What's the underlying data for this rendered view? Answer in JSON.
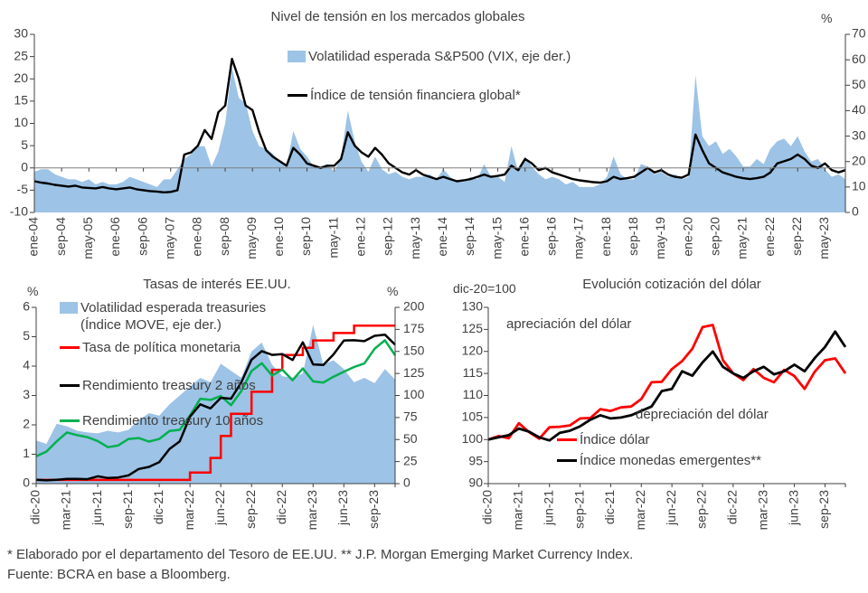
{
  "colors": {
    "area_blue": "#9DC3E6",
    "line_red": "#FF0000",
    "line_green": "#00B050",
    "line_black": "#000000",
    "axis": "#404040",
    "zero_line": "#7f7f7f"
  },
  "footer": {
    "line1": "* Elaborado por el departamento del Tesoro de EE.UU. ** J.P. Morgan Emerging Market Currency Index.",
    "line2": "Fuente: BCRA en base a Bloomberg."
  },
  "chart_data": [
    {
      "type": "area+line",
      "title": "Nivel de tensión en los mercados globales",
      "right_axis_unit": "%",
      "sample_step_months": 2,
      "x_tick_step": 8,
      "x_tick_labels": [
        "ene-04",
        "sep-04",
        "may-05",
        "ene-06",
        "sep-06",
        "may-07",
        "ene-08",
        "sep-08",
        "may-09",
        "ene-10",
        "sep-10",
        "may-11",
        "ene-12",
        "sep-12",
        "may-13",
        "ene-14",
        "sep-14",
        "may-15",
        "ene-16",
        "sep-16",
        "may-17",
        "ene-18",
        "sep-18",
        "may-19",
        "ene-20",
        "sep-20",
        "may-21",
        "ene-22",
        "sep-22",
        "may-23"
      ],
      "left_axis": {
        "min": -10,
        "max": 30,
        "tick_interval": 5
      },
      "right_axis": {
        "min": 0,
        "max": 70,
        "tick_interval": 10
      },
      "legend": [
        {
          "label": "Volatilidad esperada S&P500 (VIX, eje der.)",
          "swatch": "area",
          "color": "#9DC3E6"
        },
        {
          "label": "Índice de tensión financiera global*",
          "swatch": "line",
          "color": "#000000"
        }
      ],
      "series": [
        {
          "name": "Volatilidad esperada S&P500 (VIX)",
          "axis": "right",
          "kind": "area",
          "color": "#9DC3E6",
          "values": [
            16,
            17,
            17,
            15,
            14,
            13,
            13,
            12,
            13,
            11,
            12,
            11,
            11,
            12,
            14,
            13,
            12,
            11,
            10,
            13,
            13,
            17,
            21,
            23,
            26,
            26,
            18,
            24,
            35,
            57,
            45,
            43,
            32,
            26,
            25,
            23,
            20,
            18,
            32,
            25,
            22,
            18,
            18,
            19,
            16,
            22,
            40,
            28,
            20,
            16,
            22,
            17,
            15,
            16,
            14,
            13,
            14,
            14,
            15,
            13,
            17,
            14,
            12,
            12,
            14,
            13,
            19,
            14,
            14,
            12,
            26,
            16,
            22,
            18,
            15,
            13,
            14,
            13,
            11,
            12,
            10,
            10,
            10,
            11,
            14,
            22,
            15,
            13,
            13,
            19,
            18,
            15,
            16,
            14,
            15,
            13,
            14,
            54,
            30,
            26,
            28,
            23,
            25,
            22,
            18,
            18,
            21,
            19,
            25,
            28,
            29,
            26,
            30,
            24,
            20,
            21,
            17,
            14,
            15,
            13
          ]
        },
        {
          "name": "Índice de tensión financiera global",
          "axis": "left",
          "kind": "line",
          "color": "#000000",
          "width": 2.4,
          "values": [
            -3.0,
            -3.3,
            -3.5,
            -3.8,
            -4.0,
            -4.2,
            -4.0,
            -4.4,
            -4.5,
            -4.6,
            -4.3,
            -4.6,
            -4.8,
            -4.6,
            -4.4,
            -4.8,
            -5.0,
            -5.2,
            -5.3,
            -5.5,
            -5.4,
            -5.0,
            3.0,
            3.5,
            5.0,
            8.5,
            6.5,
            12.5,
            14.0,
            24.5,
            20.0,
            14.0,
            13.0,
            8.0,
            4.0,
            2.5,
            1.5,
            0.5,
            4.5,
            3.0,
            1.0,
            0.5,
            0.0,
            0.5,
            0.5,
            2.0,
            8.0,
            5.0,
            3.5,
            2.5,
            4.5,
            3.0,
            1.0,
            0.0,
            -1.0,
            -1.5,
            -0.5,
            -1.5,
            -2.0,
            -2.5,
            -2.0,
            -2.5,
            -3.0,
            -2.8,
            -2.5,
            -2.0,
            -1.5,
            -2.0,
            -1.8,
            -1.5,
            0.5,
            -0.5,
            2.0,
            1.0,
            -0.5,
            0.0,
            -1.0,
            -1.5,
            -2.0,
            -2.5,
            -2.8,
            -3.0,
            -3.2,
            -3.3,
            -3.0,
            -2.0,
            -2.5,
            -2.3,
            -2.0,
            -1.0,
            0.0,
            -1.0,
            -0.5,
            -1.5,
            -2.0,
            -2.2,
            -1.5,
            7.5,
            4.0,
            1.0,
            0.0,
            -1.0,
            -1.5,
            -2.0,
            -2.3,
            -2.5,
            -2.3,
            -2.0,
            -1.0,
            1.0,
            1.5,
            2.0,
            3.0,
            2.0,
            0.5,
            0.0,
            1.0,
            -0.5,
            -1.0,
            -0.5
          ]
        }
      ]
    },
    {
      "type": "area+line",
      "title": "Tasas de interés EE.UU.",
      "left_axis_unit": "%",
      "right_axis_unit": "%",
      "sample_step_months": 1,
      "x_tick_step": 3,
      "x_tick_labels": [
        "dic-20",
        "mar-21",
        "jun-21",
        "sep-21",
        "dic-21",
        "mar-22",
        "jun-22",
        "sep-22",
        "dic-22",
        "mar-23",
        "jun-23",
        "sep-23"
      ],
      "left_axis": {
        "min": 0,
        "max": 6,
        "tick_interval": 1
      },
      "right_axis": {
        "min": 0,
        "max": 200,
        "tick_interval": 25
      },
      "legend": [
        {
          "lines": [
            "Volatilidad esperada treasuries",
            "(Índice MOVE, eje der.)"
          ],
          "swatch": "area",
          "color": "#9DC3E6"
        },
        {
          "label": "Tasa de política monetaria",
          "swatch": "line",
          "color": "#FF0000"
        },
        {
          "label": "Rendimiento treasury 2 años",
          "swatch": "line",
          "color": "#000000"
        },
        {
          "label": "Rendimiento treasury 10 años",
          "swatch": "line",
          "color": "#00B050"
        }
      ],
      "series": [
        {
          "name": "Volatilidad esperada treasuries (Índice MOVE)",
          "axis": "right",
          "kind": "area",
          "color": "#9DC3E6",
          "values": [
            49,
            45,
            68,
            65,
            60,
            58,
            57,
            60,
            58,
            61,
            72,
            80,
            77,
            90,
            100,
            110,
            120,
            115,
            136,
            128,
            120,
            150,
            160,
            135,
            122,
            120,
            125,
            180,
            135,
            140,
            130,
            115,
            120,
            114,
            130,
            118
          ]
        },
        {
          "name": "Tasa de política monetaria",
          "axis": "left",
          "kind": "step",
          "color": "#FF0000",
          "width": 2.5,
          "values": [
            0.125,
            0.125,
            0.125,
            0.125,
            0.125,
            0.125,
            0.125,
            0.125,
            0.125,
            0.125,
            0.125,
            0.125,
            0.125,
            0.125,
            0.125,
            0.375,
            0.375,
            0.875,
            1.625,
            2.375,
            2.375,
            3.125,
            3.125,
            3.875,
            4.375,
            4.375,
            4.625,
            4.875,
            4.875,
            5.125,
            5.125,
            5.375,
            5.375,
            5.375,
            5.375,
            5.375
          ]
        },
        {
          "name": "Rendimiento treasury 10 años",
          "axis": "left",
          "kind": "line",
          "color": "#00B050",
          "width": 2.5,
          "values": [
            0.93,
            1.09,
            1.44,
            1.74,
            1.65,
            1.58,
            1.45,
            1.24,
            1.3,
            1.52,
            1.55,
            1.43,
            1.52,
            1.79,
            1.83,
            2.32,
            2.89,
            2.85,
            2.98,
            2.67,
            3.15,
            3.83,
            4.1,
            3.68,
            3.88,
            3.52,
            3.92,
            3.48,
            3.44,
            3.64,
            3.81,
            3.97,
            4.09,
            4.59,
            4.88,
            4.37
          ]
        },
        {
          "name": "Rendimiento treasury 2 años",
          "axis": "left",
          "kind": "line",
          "color": "#000000",
          "width": 2.5,
          "values": [
            0.13,
            0.11,
            0.13,
            0.16,
            0.16,
            0.15,
            0.25,
            0.19,
            0.21,
            0.28,
            0.5,
            0.57,
            0.73,
            1.18,
            1.44,
            2.28,
            2.7,
            2.56,
            2.92,
            2.89,
            3.45,
            4.22,
            4.51,
            4.38,
            4.41,
            4.21,
            4.81,
            4.06,
            4.04,
            4.4,
            4.87,
            4.88,
            4.85,
            5.03,
            5.07,
            4.73
          ]
        }
      ]
    },
    {
      "type": "line",
      "title": "Evolución cotización del dólar",
      "left_axis_unit": "dic-20=100",
      "sample_step_months": 1,
      "x_tick_step": 3,
      "x_tick_labels": [
        "dic-20",
        "mar-21",
        "jun-21",
        "sep-21",
        "dic-21",
        "mar-22",
        "jun-22",
        "sep-22",
        "dic-22",
        "mar-23",
        "jun-23",
        "sep-23"
      ],
      "left_axis": {
        "min": 90,
        "max": 130,
        "tick_interval": 5
      },
      "annotations": [
        {
          "text": "apreciación del dólar"
        },
        {
          "text": "depreciación del dólar"
        }
      ],
      "legend": [
        {
          "label": "Índice dólar",
          "swatch": "line",
          "color": "#FF0000"
        },
        {
          "label": "Índice monedas emergentes**",
          "swatch": "line",
          "color": "#000000"
        }
      ],
      "series": [
        {
          "name": "Índice dólar",
          "axis": "left",
          "kind": "line",
          "color": "#FF0000",
          "width": 2.8,
          "values": [
            100.0,
            100.8,
            100.3,
            103.7,
            101.7,
            100.2,
            102.8,
            102.9,
            103.2,
            104.8,
            104.9,
            106.9,
            106.5,
            107.3,
            107.5,
            109.2,
            113.0,
            113.1,
            116.0,
            117.8,
            120.6,
            125.5,
            126.0,
            118.0,
            115.0,
            113.5,
            116.0,
            114.0,
            113.0,
            115.8,
            114.4,
            111.5,
            115.4,
            118.0,
            118.4,
            115.0
          ]
        },
        {
          "name": "Índice monedas emergentes",
          "axis": "left",
          "kind": "line",
          "color": "#000000",
          "width": 2.8,
          "values": [
            100.0,
            100.5,
            101.0,
            102.5,
            101.8,
            100.5,
            99.8,
            101.5,
            102.0,
            103.0,
            104.5,
            105.5,
            104.8,
            105.0,
            105.5,
            106.5,
            107.5,
            111.0,
            111.5,
            115.5,
            114.5,
            117.5,
            120.0,
            116.5,
            115.0,
            114.0,
            115.5,
            116.5,
            114.8,
            115.5,
            117.0,
            115.5,
            118.5,
            121.0,
            124.5,
            121.0
          ]
        }
      ]
    }
  ]
}
